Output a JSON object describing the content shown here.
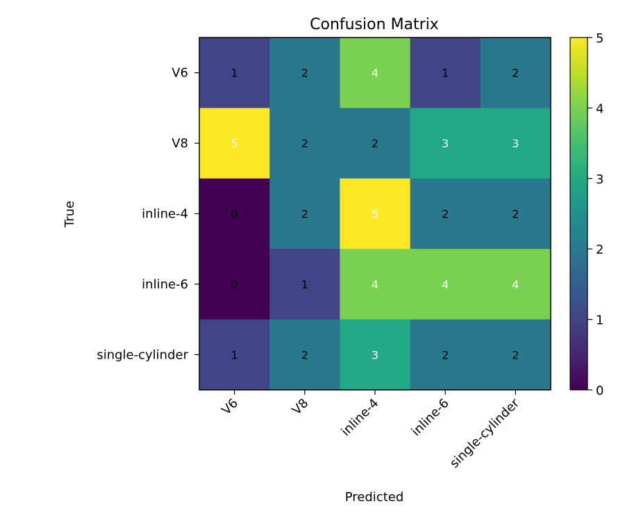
{
  "chart_data": {
    "type": "heatmap",
    "title": "Confusion Matrix",
    "xlabel": "Predicted",
    "ylabel": "True",
    "x_categories": [
      "V6",
      "V8",
      "inline-4",
      "inline-6",
      "single-cylinder"
    ],
    "y_categories": [
      "V6",
      "V8",
      "inline-4",
      "inline-6",
      "single-cylinder"
    ],
    "values": [
      [
        1,
        2,
        4,
        1,
        2
      ],
      [
        5,
        2,
        2,
        3,
        3
      ],
      [
        0,
        2,
        5,
        2,
        2
      ],
      [
        0,
        1,
        4,
        4,
        4
      ],
      [
        1,
        2,
        3,
        2,
        2
      ]
    ],
    "colormap": "viridis",
    "colorbar": {
      "range": [
        0,
        5
      ],
      "ticks": [
        "0",
        "1",
        "2",
        "3",
        "4",
        "5"
      ]
    },
    "value_text_colors": {
      "dark": "#000000",
      "light": "#ffffff"
    },
    "grid": false,
    "legend": "colorbar-right"
  }
}
